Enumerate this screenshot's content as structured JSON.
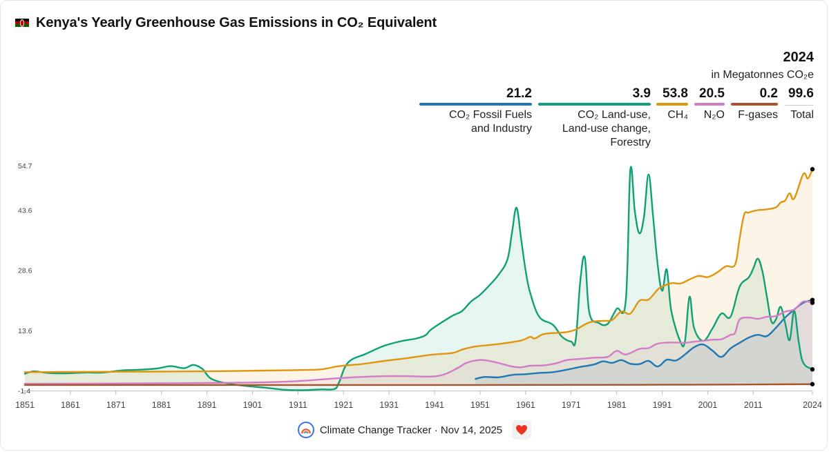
{
  "title": "Kenya's Yearly Greenhouse Gas Emissions in CO₂ Equivalent",
  "year_label": "2024",
  "unit_label": "in Megatonnes CO₂e",
  "legend": [
    {
      "value": "21.2",
      "name_lines": [
        "CO₂ Fossil Fuels",
        "and Industry"
      ],
      "color": "#1f77b4"
    },
    {
      "value": "3.9",
      "name_lines": [
        "CO₂ Land-use,",
        "Land-use change,",
        "Forestry"
      ],
      "color": "#10a075"
    },
    {
      "value": "53.8",
      "name_lines": [
        "CH₄"
      ],
      "color": "#e0950c"
    },
    {
      "value": "20.5",
      "name_lines": [
        "N₂O"
      ],
      "color": "#d27cc8"
    },
    {
      "value": "0.2",
      "name_lines": [
        "F-gases"
      ],
      "color": "#a8532c"
    },
    {
      "value": "99.6",
      "name_lines": [
        "Total"
      ],
      "color": ""
    }
  ],
  "footer": {
    "source": "Climate Change Tracker · Nov 14, 2025"
  },
  "chart_data": {
    "type": "area",
    "title": "Kenya's Yearly Greenhouse Gas Emissions in CO₂ Equivalent",
    "ylabel": "in Megatonnes CO₂e",
    "ylim": [
      -1.4,
      54.7
    ],
    "xlim": [
      1851,
      2024
    ],
    "x_ticks": [
      1851,
      1861,
      1871,
      1881,
      1891,
      1901,
      1911,
      1921,
      1931,
      1941,
      1951,
      1961,
      1971,
      1981,
      1991,
      2001,
      2011,
      2024
    ],
    "y_ticks": [
      -1.4,
      13.6,
      28.6,
      43.6,
      54.7
    ],
    "series": [
      {
        "name": "CO₂ Fossil Fuels and Industry",
        "color": "#1f77b4",
        "points": [
          [
            1950,
            1.5
          ],
          [
            1952,
            2.0
          ],
          [
            1955,
            1.9
          ],
          [
            1958,
            2.5
          ],
          [
            1961,
            2.7
          ],
          [
            1964,
            3.0
          ],
          [
            1967,
            3.2
          ],
          [
            1970,
            3.8
          ],
          [
            1973,
            4.5
          ],
          [
            1976,
            5.1
          ],
          [
            1978,
            5.9
          ],
          [
            1980,
            5.5
          ],
          [
            1982,
            6.2
          ],
          [
            1984,
            5.3
          ],
          [
            1986,
            5.2
          ],
          [
            1988,
            6.0
          ],
          [
            1990,
            4.6
          ],
          [
            1992,
            6.3
          ],
          [
            1994,
            6.1
          ],
          [
            1996,
            7.6
          ],
          [
            1998,
            9.4
          ],
          [
            2000,
            10.1
          ],
          [
            2002,
            8.6
          ],
          [
            2004,
            7.0
          ],
          [
            2006,
            9.1
          ],
          [
            2008,
            10.5
          ],
          [
            2010,
            11.8
          ],
          [
            2012,
            12.5
          ],
          [
            2014,
            12.2
          ],
          [
            2016,
            14.3
          ],
          [
            2018,
            16.8
          ],
          [
            2020,
            18.8
          ],
          [
            2022,
            20.5
          ],
          [
            2024,
            21.2
          ]
        ]
      },
      {
        "name": "CO₂ Land-use, Land-use change, Forestry",
        "color": "#10a075",
        "points": [
          [
            1851,
            2.8
          ],
          [
            1853,
            3.4
          ],
          [
            1856,
            3.0
          ],
          [
            1860,
            2.9
          ],
          [
            1864,
            3.1
          ],
          [
            1868,
            3.1
          ],
          [
            1872,
            3.6
          ],
          [
            1876,
            3.8
          ],
          [
            1880,
            4.1
          ],
          [
            1883,
            4.7
          ],
          [
            1886,
            4.2
          ],
          [
            1888,
            5.0
          ],
          [
            1890,
            4.0
          ],
          [
            1892,
            1.5
          ],
          [
            1896,
            0.3
          ],
          [
            1900,
            -0.3
          ],
          [
            1904,
            -0.7
          ],
          [
            1908,
            -1.2
          ],
          [
            1912,
            -1.3
          ],
          [
            1916,
            -1.1
          ],
          [
            1919,
            -1.0
          ],
          [
            1920,
            0.6
          ],
          [
            1922,
            5.6
          ],
          [
            1926,
            7.8
          ],
          [
            1930,
            9.8
          ],
          [
            1934,
            11.0
          ],
          [
            1937,
            11.6
          ],
          [
            1939,
            12.4
          ],
          [
            1940,
            13.6
          ],
          [
            1942,
            15.2
          ],
          [
            1945,
            17.3
          ],
          [
            1947,
            18.4
          ],
          [
            1949,
            20.8
          ],
          [
            1951,
            22.5
          ],
          [
            1953,
            24.8
          ],
          [
            1955,
            27.4
          ],
          [
            1957,
            31.3
          ],
          [
            1958,
            38.0
          ],
          [
            1959,
            44.2
          ],
          [
            1960,
            36.5
          ],
          [
            1961,
            28.5
          ],
          [
            1962,
            23.0
          ],
          [
            1964,
            17.0
          ],
          [
            1967,
            15.0
          ],
          [
            1969,
            12.0
          ],
          [
            1971,
            10.8
          ],
          [
            1972,
            11.2
          ],
          [
            1973,
            25.8
          ],
          [
            1974,
            31.8
          ],
          [
            1975,
            18.0
          ],
          [
            1977,
            15.5
          ],
          [
            1979,
            15.2
          ],
          [
            1981,
            19.0
          ],
          [
            1983,
            21.0
          ],
          [
            1984,
            53.6
          ],
          [
            1985,
            43.2
          ],
          [
            1986,
            37.8
          ],
          [
            1987,
            42.0
          ],
          [
            1988,
            52.5
          ],
          [
            1989,
            42.0
          ],
          [
            1990,
            30.0
          ],
          [
            1991,
            23.5
          ],
          [
            1992,
            28.8
          ],
          [
            1993,
            18.5
          ],
          [
            1995,
            10.8
          ],
          [
            1996,
            10.9
          ],
          [
            1997,
            22.0
          ],
          [
            1998,
            14.2
          ],
          [
            2000,
            11.0
          ],
          [
            2002,
            14.0
          ],
          [
            2004,
            17.8
          ],
          [
            2006,
            17.0
          ],
          [
            2008,
            24.5
          ],
          [
            2010,
            26.8
          ],
          [
            2011,
            29.0
          ],
          [
            2012,
            31.5
          ],
          [
            2013,
            28.4
          ],
          [
            2014,
            22.0
          ],
          [
            2015,
            15.8
          ],
          [
            2016,
            16.4
          ],
          [
            2017,
            19.5
          ],
          [
            2018,
            15.5
          ],
          [
            2019,
            11.2
          ],
          [
            2020,
            18.5
          ],
          [
            2021,
            10.7
          ],
          [
            2022,
            5.5
          ],
          [
            2024,
            3.9
          ]
        ]
      },
      {
        "name": "CH₄",
        "color": "#e0950c",
        "points": [
          [
            1851,
            3.2
          ],
          [
            1870,
            3.3
          ],
          [
            1890,
            3.4
          ],
          [
            1910,
            3.7
          ],
          [
            1916,
            3.9
          ],
          [
            1920,
            4.7
          ],
          [
            1925,
            5.2
          ],
          [
            1930,
            6.0
          ],
          [
            1935,
            6.7
          ],
          [
            1940,
            7.5
          ],
          [
            1945,
            8.0
          ],
          [
            1947,
            8.8
          ],
          [
            1950,
            9.6
          ],
          [
            1955,
            10.2
          ],
          [
            1960,
            11.1
          ],
          [
            1962,
            12.0
          ],
          [
            1963,
            11.6
          ],
          [
            1965,
            12.7
          ],
          [
            1968,
            13.0
          ],
          [
            1970,
            13.2
          ],
          [
            1972,
            13.8
          ],
          [
            1975,
            15.6
          ],
          [
            1978,
            16.0
          ],
          [
            1980,
            16.2
          ],
          [
            1982,
            18.3
          ],
          [
            1984,
            17.8
          ],
          [
            1986,
            21.0
          ],
          [
            1988,
            21.3
          ],
          [
            1990,
            23.8
          ],
          [
            1991,
            24.5
          ],
          [
            1993,
            25.4
          ],
          [
            1995,
            25.3
          ],
          [
            1997,
            26.3
          ],
          [
            1999,
            27.2
          ],
          [
            2001,
            26.9
          ],
          [
            2003,
            28.0
          ],
          [
            2005,
            29.6
          ],
          [
            2007,
            30.0
          ],
          [
            2008,
            36.5
          ],
          [
            2009,
            42.5
          ],
          [
            2010,
            43.0
          ],
          [
            2012,
            43.6
          ],
          [
            2014,
            43.8
          ],
          [
            2016,
            44.3
          ],
          [
            2017,
            45.5
          ],
          [
            2018,
            46.0
          ],
          [
            2019,
            47.8
          ],
          [
            2020,
            46.5
          ],
          [
            2022,
            52.6
          ],
          [
            2023,
            51.5
          ],
          [
            2024,
            53.8
          ]
        ]
      },
      {
        "name": "N₂O",
        "color": "#d27cc8",
        "points": [
          [
            1851,
            0.3
          ],
          [
            1880,
            0.4
          ],
          [
            1900,
            0.6
          ],
          [
            1910,
            0.9
          ],
          [
            1920,
            1.7
          ],
          [
            1925,
            2.0
          ],
          [
            1930,
            2.2
          ],
          [
            1935,
            2.2
          ],
          [
            1940,
            2.1
          ],
          [
            1943,
            2.6
          ],
          [
            1946,
            4.2
          ],
          [
            1948,
            5.5
          ],
          [
            1950,
            6.1
          ],
          [
            1952,
            6.2
          ],
          [
            1955,
            5.5
          ],
          [
            1958,
            4.6
          ],
          [
            1960,
            4.4
          ],
          [
            1962,
            4.8
          ],
          [
            1965,
            4.9
          ],
          [
            1968,
            5.5
          ],
          [
            1970,
            6.2
          ],
          [
            1973,
            6.5
          ],
          [
            1976,
            6.8
          ],
          [
            1979,
            7.0
          ],
          [
            1981,
            8.5
          ],
          [
            1983,
            7.6
          ],
          [
            1986,
            9.0
          ],
          [
            1988,
            9.2
          ],
          [
            1990,
            10.3
          ],
          [
            1993,
            10.6
          ],
          [
            1996,
            10.5
          ],
          [
            1998,
            10.8
          ],
          [
            2000,
            11.0
          ],
          [
            2002,
            11.3
          ],
          [
            2004,
            11.4
          ],
          [
            2006,
            12.5
          ],
          [
            2007,
            13.0
          ],
          [
            2008,
            16.3
          ],
          [
            2010,
            16.8
          ],
          [
            2012,
            16.5
          ],
          [
            2014,
            17.0
          ],
          [
            2016,
            17.2
          ],
          [
            2018,
            18.3
          ],
          [
            2020,
            18.8
          ],
          [
            2022,
            20.8
          ],
          [
            2024,
            20.5
          ]
        ]
      },
      {
        "name": "F-gases",
        "color": "#a8532c",
        "points": [
          [
            1851,
            0.0
          ],
          [
            1950,
            0.0
          ],
          [
            1990,
            0.05
          ],
          [
            2010,
            0.12
          ],
          [
            2024,
            0.2
          ]
        ]
      }
    ]
  }
}
